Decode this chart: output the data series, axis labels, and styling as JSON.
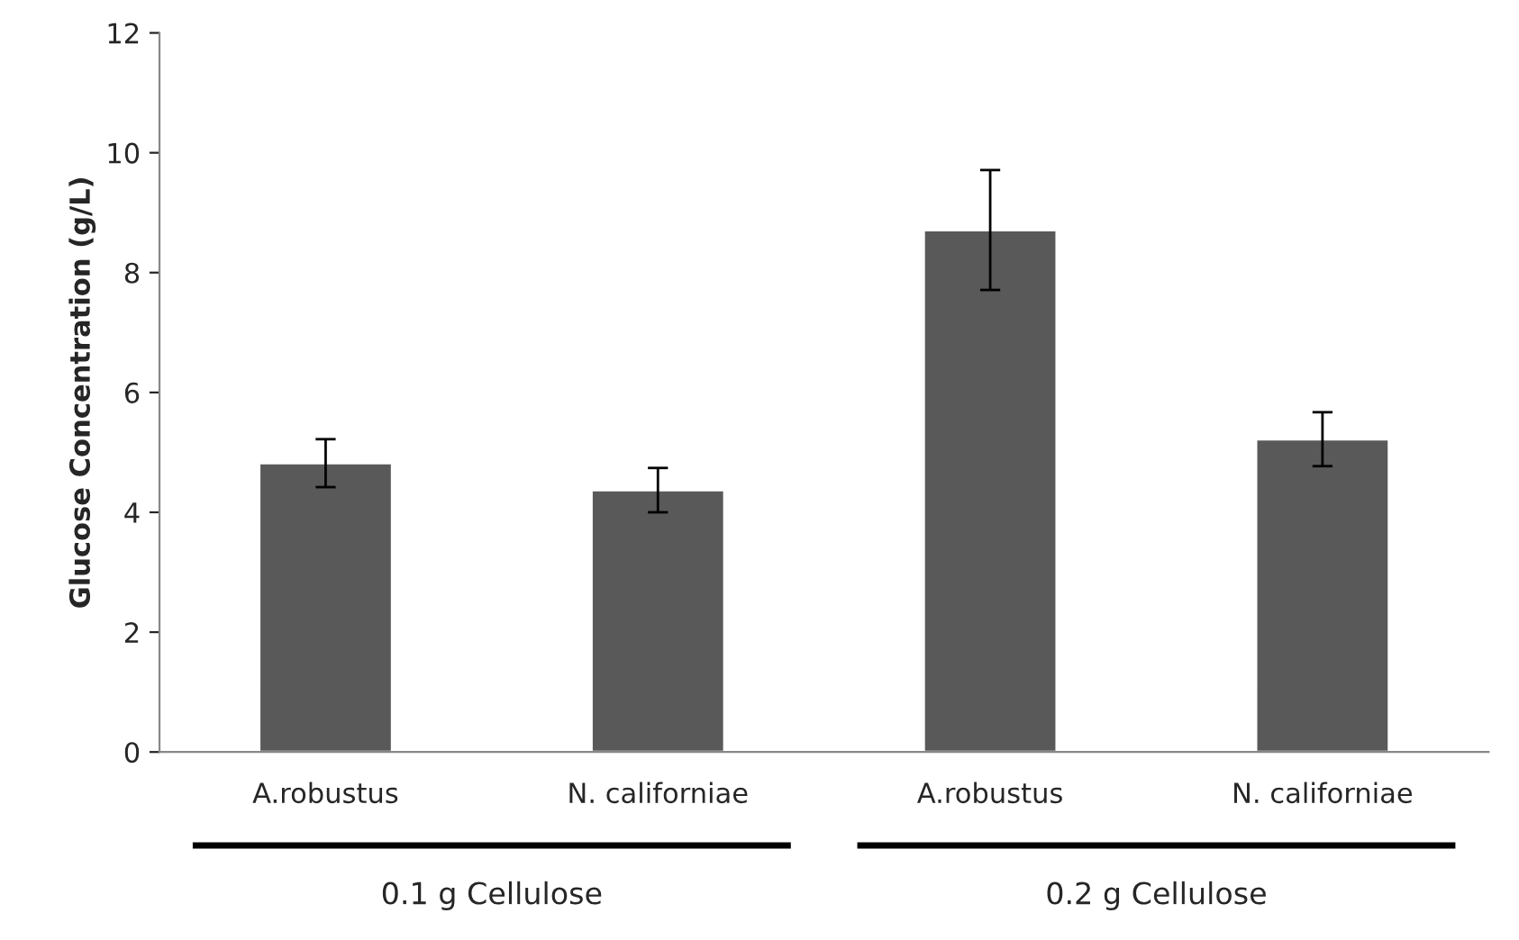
{
  "chart_data": {
    "type": "bar",
    "ylabel": "Glucose Concentration (g/L)",
    "categories": [
      "A.robustus",
      "N. californiae",
      "A.robustus",
      "N. californiae"
    ],
    "series": [
      {
        "color": "#595959",
        "values": [
          4.82,
          4.37,
          8.71,
          5.22
        ],
        "errors": [
          0.4,
          0.37,
          1.0,
          0.45
        ]
      }
    ],
    "ylim": [
      0,
      12
    ],
    "yticks": [
      0,
      2,
      4,
      6,
      8,
      10,
      12
    ],
    "grid": false,
    "annotations": [
      "0.1 g Cellulose",
      "0.2 g Cellulose"
    ]
  }
}
